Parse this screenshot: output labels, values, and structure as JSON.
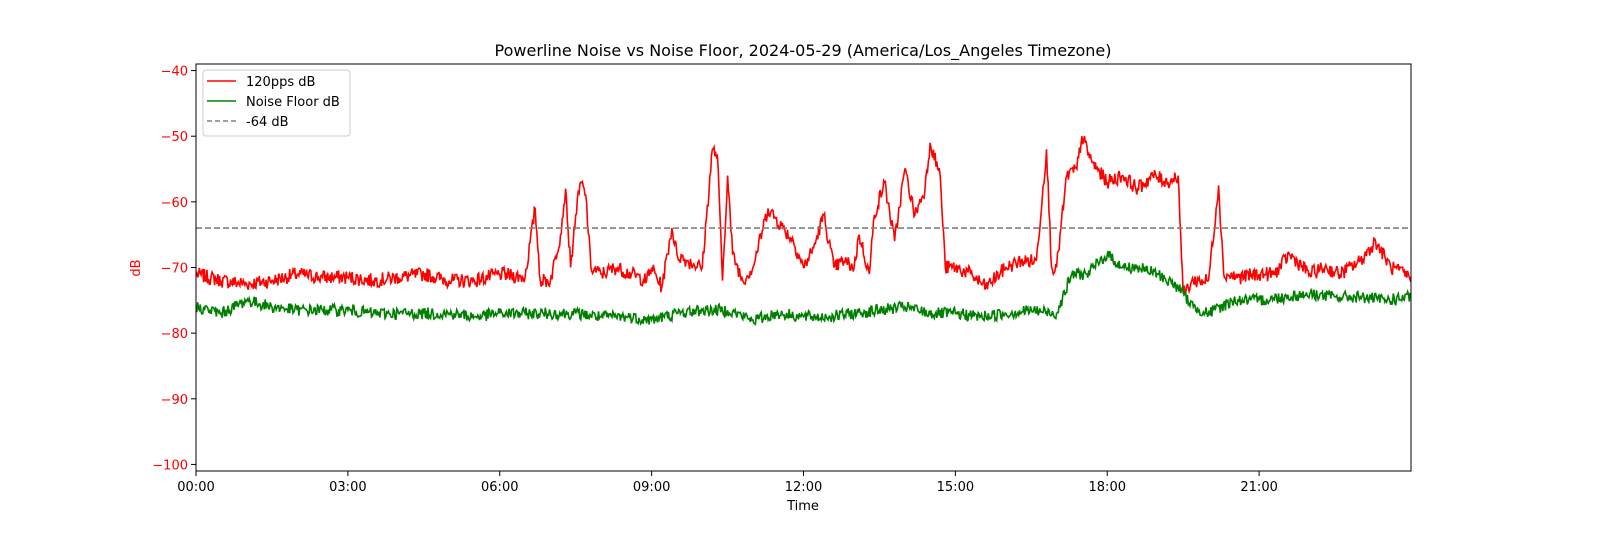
{
  "chart_data": {
    "type": "line",
    "title": "Powerline Noise vs Noise Floor, 2024-05-29 (America/Los_Angeles Timezone)",
    "xlabel": "Time",
    "ylabel": "dB",
    "x_ticks": [
      "00:00",
      "03:00",
      "06:00",
      "09:00",
      "12:00",
      "15:00",
      "18:00",
      "21:00"
    ],
    "y_ticks": [
      -40,
      -50,
      -60,
      -70,
      -80,
      -90,
      -100
    ],
    "xlim_hours": [
      0,
      24
    ],
    "ylim": [
      -101,
      -39
    ],
    "legend_position": "upper-left",
    "grid": false,
    "ylabel_color": "#ff0000",
    "series": [
      {
        "name": "120pps dB",
        "color": "#ff0000",
        "style": "solid",
        "points": [
          [
            0,
            -71
          ],
          [
            0.5,
            -72
          ],
          [
            1,
            -72.5
          ],
          [
            1.5,
            -72
          ],
          [
            2,
            -71
          ],
          [
            2.5,
            -71.5
          ],
          [
            3,
            -71.5
          ],
          [
            3.5,
            -72
          ],
          [
            4,
            -71.5
          ],
          [
            4.5,
            -71
          ],
          [
            5,
            -72
          ],
          [
            5.5,
            -72
          ],
          [
            6,
            -71
          ],
          [
            6.5,
            -71.5
          ],
          [
            6.7,
            -61
          ],
          [
            6.8,
            -72
          ],
          [
            7,
            -72
          ],
          [
            7.2,
            -65
          ],
          [
            7.3,
            -58
          ],
          [
            7.4,
            -70
          ],
          [
            7.5,
            -62
          ],
          [
            7.6,
            -57
          ],
          [
            7.7,
            -59
          ],
          [
            7.8,
            -70
          ],
          [
            8,
            -71
          ],
          [
            8.3,
            -70
          ],
          [
            8.6,
            -71
          ],
          [
            8.9,
            -72
          ],
          [
            9,
            -70
          ],
          [
            9.2,
            -73
          ],
          [
            9.4,
            -64
          ],
          [
            9.5,
            -68
          ],
          [
            9.7,
            -69
          ],
          [
            10,
            -70
          ],
          [
            10.2,
            -52
          ],
          [
            10.3,
            -53
          ],
          [
            10.4,
            -72
          ],
          [
            10.5,
            -56
          ],
          [
            10.6,
            -68
          ],
          [
            10.8,
            -72
          ],
          [
            11,
            -70
          ],
          [
            11.3,
            -61
          ],
          [
            11.6,
            -64
          ],
          [
            11.8,
            -66
          ],
          [
            12,
            -70
          ],
          [
            12.2,
            -67
          ],
          [
            12.4,
            -62
          ],
          [
            12.6,
            -70
          ],
          [
            12.8,
            -69
          ],
          [
            13,
            -70
          ],
          [
            13.1,
            -65
          ],
          [
            13.3,
            -71
          ],
          [
            13.4,
            -62
          ],
          [
            13.6,
            -57
          ],
          [
            13.8,
            -66
          ],
          [
            14,
            -55
          ],
          [
            14.2,
            -62
          ],
          [
            14.4,
            -58
          ],
          [
            14.5,
            -51
          ],
          [
            14.7,
            -56
          ],
          [
            14.8,
            -70
          ],
          [
            15,
            -70
          ],
          [
            15.3,
            -71
          ],
          [
            15.6,
            -73
          ],
          [
            16,
            -70
          ],
          [
            16.3,
            -69
          ],
          [
            16.6,
            -69
          ],
          [
            16.8,
            -52
          ],
          [
            16.9,
            -70
          ],
          [
            17,
            -70
          ],
          [
            17.2,
            -56
          ],
          [
            17.4,
            -55
          ],
          [
            17.5,
            -50
          ],
          [
            17.7,
            -54
          ],
          [
            18,
            -57
          ],
          [
            18.3,
            -56
          ],
          [
            18.6,
            -58
          ],
          [
            18.9,
            -56
          ],
          [
            19.2,
            -57
          ],
          [
            19.4,
            -56
          ],
          [
            19.5,
            -74
          ],
          [
            19.7,
            -72
          ],
          [
            20,
            -72
          ],
          [
            20.2,
            -57.5
          ],
          [
            20.3,
            -71
          ],
          [
            20.6,
            -71.5
          ],
          [
            21,
            -71
          ],
          [
            21.3,
            -71
          ],
          [
            21.6,
            -68
          ],
          [
            22,
            -71
          ],
          [
            22.3,
            -70
          ],
          [
            22.6,
            -71
          ],
          [
            23,
            -69
          ],
          [
            23.3,
            -66
          ],
          [
            23.6,
            -70
          ],
          [
            24,
            -71.5
          ]
        ]
      },
      {
        "name": "Noise Floor dB",
        "color": "#008000",
        "style": "solid",
        "points": [
          [
            0,
            -76
          ],
          [
            0.5,
            -77
          ],
          [
            1,
            -75
          ],
          [
            1.5,
            -76
          ],
          [
            2,
            -76.5
          ],
          [
            2.5,
            -76.5
          ],
          [
            3,
            -76.5
          ],
          [
            3.5,
            -77
          ],
          [
            4,
            -77
          ],
          [
            4.5,
            -77
          ],
          [
            5,
            -77
          ],
          [
            5.5,
            -77.5
          ],
          [
            6,
            -77
          ],
          [
            6.5,
            -77
          ],
          [
            7,
            -77
          ],
          [
            7.5,
            -77
          ],
          [
            8,
            -77.5
          ],
          [
            8.5,
            -77.5
          ],
          [
            9,
            -78
          ],
          [
            9.5,
            -77
          ],
          [
            10,
            -76.5
          ],
          [
            10.5,
            -76.5
          ],
          [
            11,
            -78
          ],
          [
            11.5,
            -77
          ],
          [
            12,
            -77.5
          ],
          [
            12.5,
            -77.5
          ],
          [
            13,
            -77
          ],
          [
            13.5,
            -76.5
          ],
          [
            14,
            -76
          ],
          [
            14.5,
            -77
          ],
          [
            15,
            -77
          ],
          [
            15.5,
            -77.5
          ],
          [
            16,
            -77
          ],
          [
            16.5,
            -76.5
          ],
          [
            17,
            -77
          ],
          [
            17.3,
            -71
          ],
          [
            17.6,
            -71
          ],
          [
            18,
            -68
          ],
          [
            18.3,
            -70
          ],
          [
            18.6,
            -70
          ],
          [
            19,
            -71
          ],
          [
            19.4,
            -73
          ],
          [
            19.7,
            -76
          ],
          [
            20,
            -77
          ],
          [
            20.5,
            -75
          ],
          [
            21,
            -75
          ],
          [
            21.5,
            -74.5
          ],
          [
            22,
            -74
          ],
          [
            22.5,
            -74.5
          ],
          [
            23,
            -74.5
          ],
          [
            23.5,
            -75
          ],
          [
            24,
            -74.5
          ]
        ]
      },
      {
        "name": "-64 dB",
        "color": "#808080",
        "style": "dashed",
        "points": [
          [
            0,
            -64
          ],
          [
            24,
            -64
          ]
        ]
      }
    ]
  }
}
